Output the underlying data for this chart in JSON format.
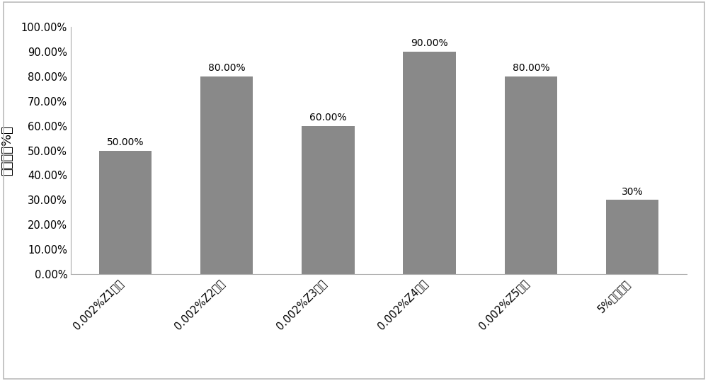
{
  "categories": [
    "0.002%Z1溶液",
    "0.002%Z2溶液",
    "0.002%Z3溶液",
    "0.002%Z4溶液",
    "0.002%Z5溶液",
    "5%蔗糖溶液"
  ],
  "values": [
    0.5,
    0.8,
    0.6,
    0.9,
    0.8,
    0.3
  ],
  "labels": [
    "50.00%",
    "80.00%",
    "60.00%",
    "90.00%",
    "80.00%",
    "30%"
  ],
  "bar_color": "#898989",
  "ylabel": "死亡率（%）",
  "ylim": [
    0,
    1.0
  ],
  "yticks": [
    0.0,
    0.1,
    0.2,
    0.3,
    0.4,
    0.5,
    0.6,
    0.7,
    0.8,
    0.9,
    1.0
  ],
  "ytick_labels": [
    "0.00%",
    "10.00%",
    "20.00%",
    "30.00%",
    "40.00%",
    "50.00%",
    "60.00%",
    "70.00%",
    "80.00%",
    "90.00%",
    "100.00%"
  ],
  "background_color": "#ffffff",
  "border_color": "#bbbbbb",
  "bar_edge_color": "none",
  "label_fontsize": 11,
  "ylabel_fontsize": 13,
  "tick_fontsize": 10.5,
  "xtick_rotation": 45,
  "bar_width": 0.52
}
